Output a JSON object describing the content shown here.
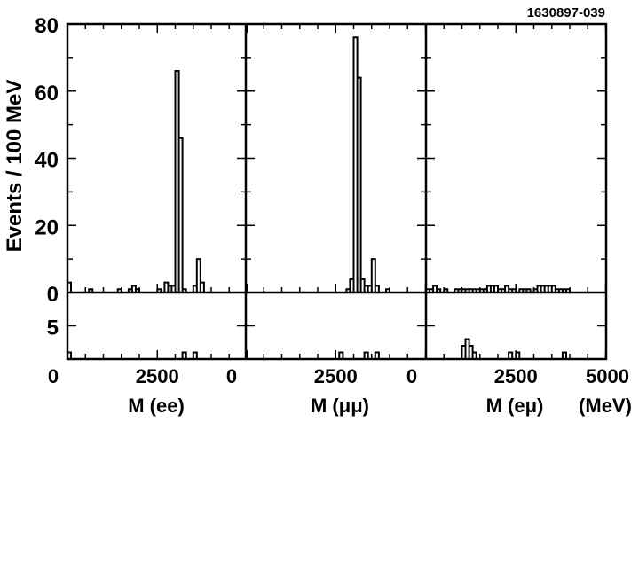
{
  "figure_id": "1630897-039",
  "chart_data": [
    {
      "type": "histogram",
      "panel": "ee",
      "xlabel": "M (ee)",
      "ylabel": "Events / 100 MeV",
      "xlim": [
        0,
        5000
      ],
      "ylim": [
        0,
        80
      ],
      "lower_ylim": [
        0,
        10
      ],
      "bin_width": 100,
      "x_tick_labels": [
        "0",
        "2500"
      ],
      "y_tick_labels": [
        "0",
        "20",
        "40",
        "60",
        "80"
      ],
      "lower_y_tick_labels": [
        "5"
      ],
      "upper_bins": [
        {
          "x": 0,
          "y": 3
        },
        {
          "x": 600,
          "y": 1
        },
        {
          "x": 1400,
          "y": 1
        },
        {
          "x": 1700,
          "y": 1
        },
        {
          "x": 1800,
          "y": 2
        },
        {
          "x": 1900,
          "y": 1
        },
        {
          "x": 2500,
          "y": 1
        },
        {
          "x": 2700,
          "y": 3
        },
        {
          "x": 2800,
          "y": 2
        },
        {
          "x": 2900,
          "y": 2
        },
        {
          "x": 3000,
          "y": 66
        },
        {
          "x": 3100,
          "y": 46
        },
        {
          "x": 3200,
          "y": 1
        },
        {
          "x": 3500,
          "y": 2
        },
        {
          "x": 3600,
          "y": 10
        },
        {
          "x": 3700,
          "y": 3
        }
      ],
      "lower_bins": [
        {
          "x": 0,
          "y": 1
        },
        {
          "x": 3200,
          "y": 1
        },
        {
          "x": 3500,
          "y": 1
        }
      ]
    },
    {
      "type": "histogram",
      "panel": "mumu",
      "xlabel": "M (μμ)",
      "xlim": [
        0,
        5000
      ],
      "ylim": [
        0,
        80
      ],
      "lower_ylim": [
        0,
        10
      ],
      "bin_width": 100,
      "x_tick_labels": [
        "0",
        "2500"
      ],
      "upper_bins": [
        {
          "x": 2800,
          "y": 1
        },
        {
          "x": 2900,
          "y": 4
        },
        {
          "x": 3000,
          "y": 76
        },
        {
          "x": 3100,
          "y": 64
        },
        {
          "x": 3200,
          "y": 4
        },
        {
          "x": 3300,
          "y": 2
        },
        {
          "x": 3400,
          "y": 2
        },
        {
          "x": 3500,
          "y": 10
        },
        {
          "x": 3600,
          "y": 2
        },
        {
          "x": 3900,
          "y": 1
        }
      ],
      "lower_bins": [
        {
          "x": 2600,
          "y": 1
        },
        {
          "x": 3300,
          "y": 1
        },
        {
          "x": 3600,
          "y": 1
        }
      ]
    },
    {
      "type": "histogram",
      "panel": "emu",
      "xlabel": "M (eμ)",
      "xunit": "(MeV)",
      "xlim": [
        0,
        5000
      ],
      "ylim": [
        0,
        80
      ],
      "lower_ylim": [
        0,
        10
      ],
      "bin_width": 100,
      "x_tick_labels": [
        "0",
        "2500",
        "5000"
      ],
      "upper_bins": [
        {
          "x": 0,
          "y": 1
        },
        {
          "x": 100,
          "y": 1
        },
        {
          "x": 200,
          "y": 2
        },
        {
          "x": 300,
          "y": 1
        },
        {
          "x": 500,
          "y": 1
        },
        {
          "x": 800,
          "y": 1
        },
        {
          "x": 900,
          "y": 1
        },
        {
          "x": 1000,
          "y": 1
        },
        {
          "x": 1100,
          "y": 1
        },
        {
          "x": 1200,
          "y": 1
        },
        {
          "x": 1300,
          "y": 1
        },
        {
          "x": 1400,
          "y": 1
        },
        {
          "x": 1500,
          "y": 1
        },
        {
          "x": 1600,
          "y": 1
        },
        {
          "x": 1700,
          "y": 2
        },
        {
          "x": 1800,
          "y": 2
        },
        {
          "x": 1900,
          "y": 2
        },
        {
          "x": 2000,
          "y": 1
        },
        {
          "x": 2100,
          "y": 1
        },
        {
          "x": 2200,
          "y": 2
        },
        {
          "x": 2300,
          "y": 1
        },
        {
          "x": 2400,
          "y": 1
        },
        {
          "x": 2600,
          "y": 1
        },
        {
          "x": 2700,
          "y": 1
        },
        {
          "x": 2800,
          "y": 1
        },
        {
          "x": 3000,
          "y": 1
        },
        {
          "x": 3100,
          "y": 2
        },
        {
          "x": 3200,
          "y": 2
        },
        {
          "x": 3300,
          "y": 2
        },
        {
          "x": 3400,
          "y": 2
        },
        {
          "x": 3500,
          "y": 2
        },
        {
          "x": 3600,
          "y": 1
        },
        {
          "x": 3700,
          "y": 1
        },
        {
          "x": 3800,
          "y": 1
        },
        {
          "x": 3900,
          "y": 1
        }
      ],
      "lower_bins": [
        {
          "x": 1000,
          "y": 2
        },
        {
          "x": 1100,
          "y": 3
        },
        {
          "x": 1200,
          "y": 2
        },
        {
          "x": 1300,
          "y": 1
        },
        {
          "x": 2300,
          "y": 1
        },
        {
          "x": 2500,
          "y": 1
        },
        {
          "x": 3800,
          "y": 1
        }
      ]
    }
  ]
}
